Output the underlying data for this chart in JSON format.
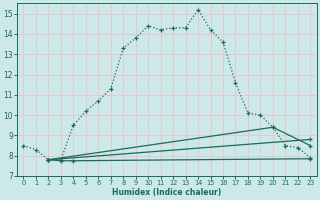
{
  "xlabel": "Humidex (Indice chaleur)",
  "background_color": "#cce8e8",
  "grid_color": "#e8c8c8",
  "line_color": "#1a6b5a",
  "xlim": [
    -0.5,
    23.5
  ],
  "ylim": [
    7,
    15.5
  ],
  "yticks": [
    7,
    8,
    9,
    10,
    11,
    12,
    13,
    14,
    15
  ],
  "xticks": [
    0,
    1,
    2,
    3,
    4,
    5,
    6,
    7,
    8,
    9,
    10,
    11,
    12,
    13,
    14,
    15,
    16,
    17,
    18,
    19,
    20,
    21,
    22,
    23
  ],
  "line1_x": [
    0,
    1,
    2,
    3,
    4,
    5,
    6,
    7,
    8,
    9,
    10,
    11,
    12,
    13,
    14,
    15,
    16,
    17,
    18,
    19,
    20,
    21,
    22,
    23
  ],
  "line1_y": [
    8.5,
    8.3,
    7.8,
    7.8,
    9.5,
    10.2,
    10.7,
    11.3,
    13.3,
    13.8,
    14.4,
    14.2,
    14.3,
    14.3,
    15.2,
    14.2,
    13.6,
    11.6,
    10.1,
    10.0,
    9.4,
    8.5,
    8.4,
    7.9
  ],
  "line2_x": [
    2,
    3,
    4,
    23
  ],
  "line2_y": [
    7.8,
    7.75,
    7.75,
    7.85
  ],
  "line3_x": [
    2,
    20,
    23
  ],
  "line3_y": [
    7.8,
    9.4,
    8.5
  ],
  "line4_x": [
    2,
    23
  ],
  "line4_y": [
    7.8,
    8.8
  ]
}
